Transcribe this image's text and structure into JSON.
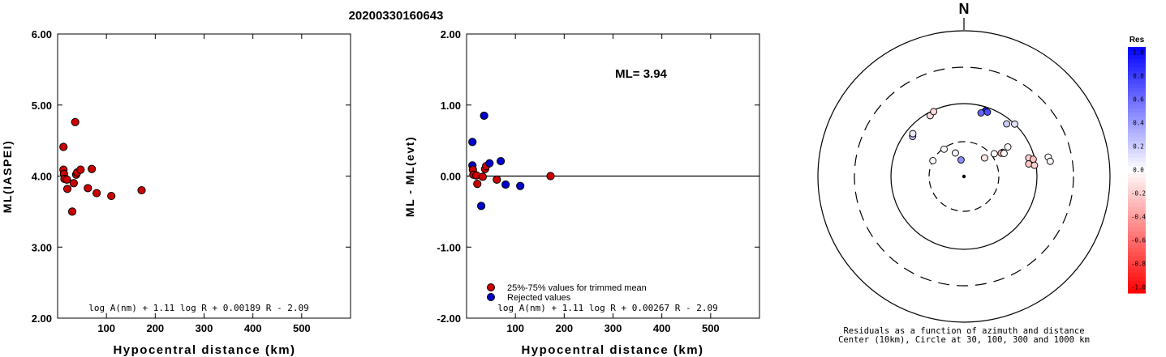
{
  "title": "20200330160643",
  "colors": {
    "trimmed": "#cc0000",
    "rejected": "#0000cc"
  },
  "chart_data": [
    {
      "type": "scatter",
      "id": "ml-vs-distance",
      "xlabel": "Hypocentral distance (km)",
      "ylabel": "ML(IASPEI)",
      "xlim": [
        0,
        600
      ],
      "ylim": [
        2.0,
        6.0
      ],
      "x_ticks": [
        "100",
        "200",
        "300",
        "400",
        "500"
      ],
      "y_ticks": [
        "2.00",
        "3.00",
        "4.00",
        "5.00",
        "6.00"
      ],
      "formula": "log A(nm) + 1.11 log R + 0.00189 R - 2.09",
      "points": [
        {
          "x": 12,
          "y": 4.41
        },
        {
          "x": 12,
          "y": 4.09
        },
        {
          "x": 13,
          "y": 4.03
        },
        {
          "x": 14,
          "y": 3.96
        },
        {
          "x": 19,
          "y": 3.95
        },
        {
          "x": 20,
          "y": 3.82
        },
        {
          "x": 30,
          "y": 3.5
        },
        {
          "x": 33,
          "y": 3.9
        },
        {
          "x": 36,
          "y": 4.76
        },
        {
          "x": 38,
          "y": 4.02
        },
        {
          "x": 40,
          "y": 4.05
        },
        {
          "x": 47,
          "y": 4.09
        },
        {
          "x": 62,
          "y": 3.83
        },
        {
          "x": 70,
          "y": 4.1
        },
        {
          "x": 80,
          "y": 3.76
        },
        {
          "x": 110,
          "y": 3.72
        },
        {
          "x": 172,
          "y": 3.8
        }
      ]
    },
    {
      "type": "scatter",
      "id": "residual-vs-distance",
      "xlabel": "Hypocentral distance (km)",
      "ylabel": "ML - ML(evt)",
      "xlim": [
        0,
        600
      ],
      "ylim": [
        -2.0,
        2.0
      ],
      "x_ticks": [
        "100",
        "200",
        "300",
        "400",
        "500"
      ],
      "y_ticks": [
        "-2.00",
        "-1.00",
        "0.00",
        "1.00",
        "2.00"
      ],
      "ml_label": "ML= 3.94",
      "formula": "log A(nm) + 1.11 log R + 0.00267 R - 2.09",
      "legend": {
        "trimmed_label": "25%-75% values for trimmed mean",
        "rejected_label": "Rejected values"
      },
      "points": [
        {
          "x": 12,
          "y": 0.48,
          "group": "rejected"
        },
        {
          "x": 12,
          "y": 0.15,
          "group": "rejected"
        },
        {
          "x": 13,
          "y": 0.09,
          "group": "trimmed"
        },
        {
          "x": 14,
          "y": 0.02,
          "group": "trimmed"
        },
        {
          "x": 20,
          "y": 0.01,
          "group": "trimmed"
        },
        {
          "x": 22,
          "y": -0.11,
          "group": "trimmed"
        },
        {
          "x": 30,
          "y": -0.42,
          "group": "rejected"
        },
        {
          "x": 33,
          "y": -0.01,
          "group": "trimmed"
        },
        {
          "x": 36,
          "y": 0.85,
          "group": "rejected"
        },
        {
          "x": 38,
          "y": 0.1,
          "group": "trimmed"
        },
        {
          "x": 40,
          "y": 0.14,
          "group": "trimmed"
        },
        {
          "x": 47,
          "y": 0.18,
          "group": "rejected"
        },
        {
          "x": 62,
          "y": -0.05,
          "group": "trimmed"
        },
        {
          "x": 70,
          "y": 0.21,
          "group": "rejected"
        },
        {
          "x": 80,
          "y": -0.12,
          "group": "rejected"
        },
        {
          "x": 110,
          "y": -0.14,
          "group": "rejected"
        },
        {
          "x": 172,
          "y": 0.0,
          "group": "trimmed"
        }
      ]
    },
    {
      "type": "polar-scatter",
      "id": "azimuth-residual-map",
      "north_label": "N",
      "caption_line1": "Residuals as a function of azimuth and distance",
      "caption_line2": "Center (10km), Circle at 30, 100, 300 and 1000 km",
      "colorbar": {
        "title": "Res",
        "range": [
          -1.0,
          1.0
        ],
        "tick_labels": [
          "1.0",
          "0.8",
          "0.6",
          "0.4",
          "0.2",
          "0.0",
          "-0.2",
          "-0.4",
          "-0.6",
          "-0.8",
          "-1.0"
        ]
      },
      "points": [
        {
          "az": 331,
          "dist": 90,
          "res": -0.12
        },
        {
          "az": 335,
          "dist": 96,
          "res": -0.14
        },
        {
          "az": 308,
          "dist": 78,
          "res": 0.26
        },
        {
          "az": 310,
          "dist": 82,
          "res": 0.08
        },
        {
          "az": 297,
          "dist": 30,
          "res": 0.02
        },
        {
          "az": 324,
          "dist": 29,
          "res": 0.02
        },
        {
          "az": 340,
          "dist": 22,
          "res": 0.05
        },
        {
          "az": 350,
          "dist": 17,
          "res": 0.45
        },
        {
          "az": 18,
          "dist": 89,
          "res": 0.89
        },
        {
          "az": 15,
          "dist": 80,
          "res": 0.6
        },
        {
          "az": 20,
          "dist": 87,
          "res": 0.7
        },
        {
          "az": 39,
          "dist": 85,
          "res": 0.2
        },
        {
          "az": 44,
          "dist": 100,
          "res": 0.12
        },
        {
          "az": 48,
          "dist": 24,
          "res": -0.1
        },
        {
          "az": 53,
          "dist": 33,
          "res": 0.0
        },
        {
          "az": 58,
          "dist": 42,
          "res": -0.06
        },
        {
          "az": 56,
          "dist": 53,
          "res": -0.04
        },
        {
          "az": 58,
          "dist": 40,
          "res": -0.3
        },
        {
          "az": 60,
          "dist": 43,
          "res": 0.0
        },
        {
          "az": 74,
          "dist": 84,
          "res": -0.18
        },
        {
          "az": 79,
          "dist": 80,
          "res": -0.22
        },
        {
          "az": 76,
          "dist": 95,
          "res": -0.24
        },
        {
          "az": 81,
          "dist": 95,
          "res": -0.18
        },
        {
          "az": 77,
          "dist": 150,
          "res": 0.02
        },
        {
          "az": 80,
          "dist": 155,
          "res": -0.04
        }
      ]
    }
  ]
}
